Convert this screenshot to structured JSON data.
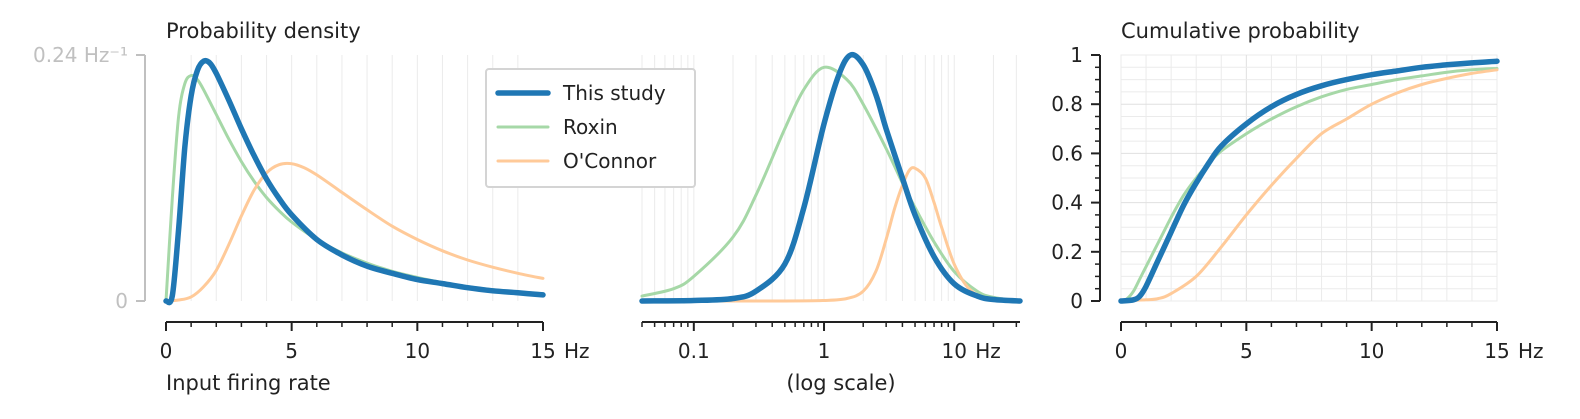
{
  "chart_data": [
    {
      "type": "line",
      "title": "Probability density",
      "xlabel": "Input firing rate",
      "x_unit": "Hz",
      "x_ticks": [
        0,
        5,
        10,
        15
      ],
      "xlim": [
        0,
        15
      ],
      "ylim": [
        0,
        0.24
      ],
      "y_ticks": [
        {
          "value": 0,
          "label": "0"
        },
        {
          "value": 0.24,
          "label": "0.24 Hz⁻¹"
        }
      ],
      "series": [
        {
          "name": "This study",
          "x": [
            0,
            0.25,
            0.5,
            0.75,
            1,
            1.25,
            1.5,
            1.75,
            2,
            2.5,
            3,
            3.5,
            4,
            4.5,
            5,
            6,
            7,
            8,
            9,
            10,
            11,
            12,
            13,
            14,
            15
          ],
          "y": [
            0,
            0.005,
            0.07,
            0.15,
            0.2,
            0.225,
            0.234,
            0.232,
            0.222,
            0.196,
            0.168,
            0.142,
            0.119,
            0.1,
            0.084,
            0.06,
            0.045,
            0.034,
            0.027,
            0.021,
            0.017,
            0.013,
            0.01,
            0.008,
            0.006
          ]
        },
        {
          "name": "Roxin",
          "x": [
            0,
            0.25,
            0.5,
            0.75,
            1,
            1.25,
            1.5,
            2,
            2.5,
            3,
            3.5,
            4,
            4.5,
            5,
            6,
            7,
            8,
            9,
            10,
            11,
            12,
            13,
            14,
            15
          ],
          "y": [
            0,
            0.1,
            0.18,
            0.212,
            0.22,
            0.216,
            0.206,
            0.182,
            0.158,
            0.136,
            0.117,
            0.101,
            0.088,
            0.077,
            0.06,
            0.047,
            0.037,
            0.029,
            0.023,
            0.018,
            0.014,
            0.011,
            0.009,
            0.007
          ]
        },
        {
          "name": "O'Connor",
          "x": [
            0,
            0.5,
            1,
            1.5,
            2,
            2.5,
            3,
            3.5,
            4,
            4.5,
            5,
            5.5,
            6,
            7,
            8,
            9,
            10,
            11,
            12,
            13,
            14,
            15
          ],
          "y": [
            0,
            0.001,
            0.004,
            0.014,
            0.03,
            0.055,
            0.083,
            0.108,
            0.125,
            0.133,
            0.134,
            0.13,
            0.123,
            0.106,
            0.089,
            0.073,
            0.06,
            0.049,
            0.04,
            0.033,
            0.027,
            0.022
          ]
        }
      ]
    },
    {
      "type": "line",
      "title": "",
      "xlabel": "(log scale)",
      "x_scale": "log",
      "x_unit": "Hz",
      "x_ticks": [
        0.1,
        1,
        10
      ],
      "x_tick_labels": [
        "0.1",
        "1",
        "10"
      ],
      "xlim": [
        0.04,
        32
      ],
      "ylim": [
        0,
        1
      ],
      "series": [
        {
          "name": "This study",
          "x": [
            0.04,
            0.1,
            0.2,
            0.3,
            0.5,
            0.7,
            1,
            1.3,
            1.6,
            2,
            2.5,
            3,
            4,
            5,
            7,
            10,
            15,
            20,
            32
          ],
          "y": [
            0,
            0.002,
            0.01,
            0.04,
            0.15,
            0.38,
            0.72,
            0.92,
            1.0,
            0.96,
            0.84,
            0.7,
            0.5,
            0.35,
            0.18,
            0.07,
            0.02,
            0.006,
            0
          ]
        },
        {
          "name": "Roxin",
          "x": [
            0.04,
            0.07,
            0.1,
            0.2,
            0.3,
            0.5,
            0.7,
            1,
            1.5,
            2,
            3,
            4,
            5,
            7,
            10,
            15,
            20,
            32
          ],
          "y": [
            0.02,
            0.05,
            0.1,
            0.26,
            0.43,
            0.7,
            0.86,
            0.95,
            0.9,
            0.8,
            0.62,
            0.48,
            0.38,
            0.24,
            0.12,
            0.04,
            0.015,
            0
          ]
        },
        {
          "name": "O'Connor",
          "x": [
            0.04,
            0.5,
            1,
            1.5,
            2,
            2.5,
            3,
            3.5,
            4,
            4.5,
            5,
            6,
            7,
            8,
            10,
            13,
            18,
            32
          ],
          "y": [
            0,
            0,
            0.002,
            0.01,
            0.04,
            0.12,
            0.25,
            0.38,
            0.47,
            0.53,
            0.54,
            0.5,
            0.4,
            0.3,
            0.15,
            0.05,
            0.01,
            0
          ]
        }
      ]
    },
    {
      "type": "line",
      "title": "Cumulative probability",
      "xlabel": "",
      "x_unit": "Hz",
      "x_ticks": [
        0,
        5,
        10,
        15
      ],
      "xlim": [
        0,
        15
      ],
      "ylim": [
        0,
        1
      ],
      "y_ticks": [
        {
          "value": 0,
          "label": "0"
        },
        {
          "value": 0.2,
          "label": "0.2"
        },
        {
          "value": 0.4,
          "label": "0.4"
        },
        {
          "value": 0.6,
          "label": "0.6"
        },
        {
          "value": 0.8,
          "label": "0.8"
        },
        {
          "value": 1,
          "label": "1"
        }
      ],
      "series": [
        {
          "name": "This study",
          "x": [
            0,
            0.5,
            0.75,
            1,
            1.5,
            2,
            2.5,
            3,
            3.5,
            4,
            5,
            6,
            7,
            8,
            9,
            10,
            11,
            12,
            13,
            14,
            15
          ],
          "y": [
            0,
            0.005,
            0.02,
            0.06,
            0.17,
            0.28,
            0.39,
            0.48,
            0.56,
            0.63,
            0.72,
            0.79,
            0.84,
            0.875,
            0.9,
            0.92,
            0.935,
            0.95,
            0.96,
            0.968,
            0.975
          ]
        },
        {
          "name": "Roxin",
          "x": [
            0,
            0.25,
            0.5,
            0.75,
            1,
            1.5,
            2,
            2.5,
            3,
            3.5,
            4,
            5,
            6,
            7,
            8,
            9,
            10,
            11,
            12,
            13,
            14,
            15
          ],
          "y": [
            0,
            0.01,
            0.04,
            0.09,
            0.14,
            0.24,
            0.34,
            0.43,
            0.5,
            0.56,
            0.61,
            0.68,
            0.74,
            0.79,
            0.83,
            0.86,
            0.88,
            0.9,
            0.915,
            0.93,
            0.94,
            0.945
          ]
        },
        {
          "name": "O'Connor",
          "x": [
            0,
            1,
            1.5,
            2,
            3,
            4,
            5,
            6,
            7,
            8,
            9,
            10,
            11,
            12,
            13,
            14,
            15
          ],
          "y": [
            0,
            0.005,
            0.01,
            0.03,
            0.1,
            0.22,
            0.35,
            0.47,
            0.58,
            0.68,
            0.74,
            0.8,
            0.845,
            0.88,
            0.905,
            0.925,
            0.94
          ]
        }
      ]
    }
  ],
  "legend": {
    "entries": [
      "This study",
      "Roxin",
      "O'Connor"
    ],
    "placement": "top-left of middle panel"
  },
  "colors": {
    "This study": "#1f77b4",
    "Roxin": "#a6d8a7",
    "O'Connor": "#ffca99",
    "axis": "#222222",
    "axis_muted": "#c0c0c0",
    "grid": "#ebebeb"
  }
}
